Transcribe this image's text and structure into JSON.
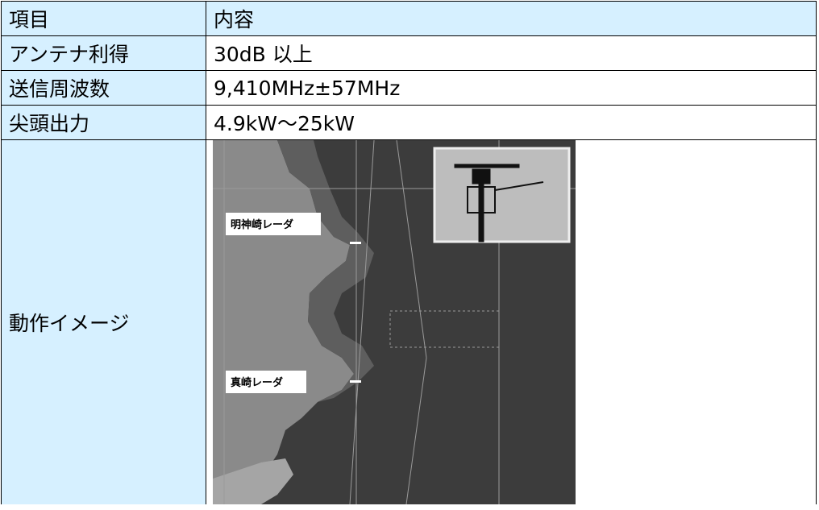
{
  "table": {
    "header": [
      "項目",
      "内容"
    ],
    "rows": [
      [
        "アンテナ利得",
        "30dB 以上"
      ],
      [
        "送信周波数",
        "9,410MHz±57MHz"
      ],
      [
        "尖頭出力",
        "4.9kW～25kW"
      ]
    ],
    "image_row": {
      "label": "動作イメージ",
      "map_labels": [
        "明神崎レーダ",
        "真崎レーダ"
      ]
    }
  }
}
